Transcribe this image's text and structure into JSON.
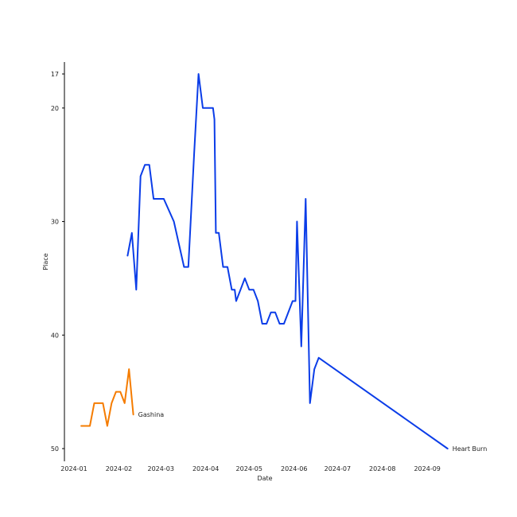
{
  "chart_data": {
    "type": "line",
    "title": "",
    "xlabel": "Date",
    "ylabel": "Place",
    "x_axis": {
      "scale": "date",
      "ticks": [
        "2024-01-01",
        "2024-02-01",
        "2024-03-01",
        "2024-04-01",
        "2024-05-01",
        "2024-06-01",
        "2024-07-01",
        "2024-08-01",
        "2024-09-01"
      ],
      "tick_labels": [
        "2024-01",
        "2024-02",
        "2024-03",
        "2024-04",
        "2024-05",
        "2024-06",
        "2024-07",
        "2024-08",
        "2024-09"
      ]
    },
    "y_axis": {
      "inverted": true,
      "ylim": [
        16,
        51
      ],
      "ticks": [
        17,
        20,
        30,
        40,
        50
      ],
      "tick_labels": [
        "17",
        "20",
        "30",
        "40",
        "50"
      ]
    },
    "grid": false,
    "legend": "none",
    "series": [
      {
        "name": "Heart Burn",
        "color": "#0b3de8",
        "points": [
          [
            "2024-02-07",
            33
          ],
          [
            "2024-02-10",
            31
          ],
          [
            "2024-02-13",
            36
          ],
          [
            "2024-02-16",
            26
          ],
          [
            "2024-02-19",
            25
          ],
          [
            "2024-02-22",
            25
          ],
          [
            "2024-02-25",
            28
          ],
          [
            "2024-03-03",
            28
          ],
          [
            "2024-03-10",
            30
          ],
          [
            "2024-03-17",
            34
          ],
          [
            "2024-03-20",
            34
          ],
          [
            "2024-03-24",
            24
          ],
          [
            "2024-03-27",
            17
          ],
          [
            "2024-03-30",
            20
          ],
          [
            "2024-04-06",
            20
          ],
          [
            "2024-04-07",
            21
          ],
          [
            "2024-04-08",
            31
          ],
          [
            "2024-04-10",
            31
          ],
          [
            "2024-04-13",
            34
          ],
          [
            "2024-04-16",
            34
          ],
          [
            "2024-04-19",
            36
          ],
          [
            "2024-04-21",
            36
          ],
          [
            "2024-04-22",
            37
          ],
          [
            "2024-04-25",
            36
          ],
          [
            "2024-04-28",
            35
          ],
          [
            "2024-05-01",
            36
          ],
          [
            "2024-05-04",
            36
          ],
          [
            "2024-05-07",
            37
          ],
          [
            "2024-05-10",
            39
          ],
          [
            "2024-05-13",
            39
          ],
          [
            "2024-05-16",
            38
          ],
          [
            "2024-05-19",
            38
          ],
          [
            "2024-05-22",
            39
          ],
          [
            "2024-05-25",
            39
          ],
          [
            "2024-05-31",
            37
          ],
          [
            "2024-06-02",
            37
          ],
          [
            "2024-06-03",
            30
          ],
          [
            "2024-06-06",
            41
          ],
          [
            "2024-06-09",
            28
          ],
          [
            "2024-06-12",
            46
          ],
          [
            "2024-06-15",
            43
          ],
          [
            "2024-06-18",
            42
          ],
          [
            "2024-09-15",
            50
          ]
        ],
        "end_label": "Heart Burn"
      },
      {
        "name": "Gashina",
        "color": "#f57c00",
        "points": [
          [
            "2024-01-06",
            48
          ],
          [
            "2024-01-12",
            48
          ],
          [
            "2024-01-15",
            46
          ],
          [
            "2024-01-18",
            46
          ],
          [
            "2024-01-21",
            46
          ],
          [
            "2024-01-24",
            48
          ],
          [
            "2024-01-27",
            46
          ],
          [
            "2024-01-30",
            45
          ],
          [
            "2024-02-02",
            45
          ],
          [
            "2024-02-05",
            46
          ],
          [
            "2024-02-08",
            43
          ],
          [
            "2024-02-11",
            47
          ]
        ],
        "end_label": "Gashina"
      }
    ]
  }
}
